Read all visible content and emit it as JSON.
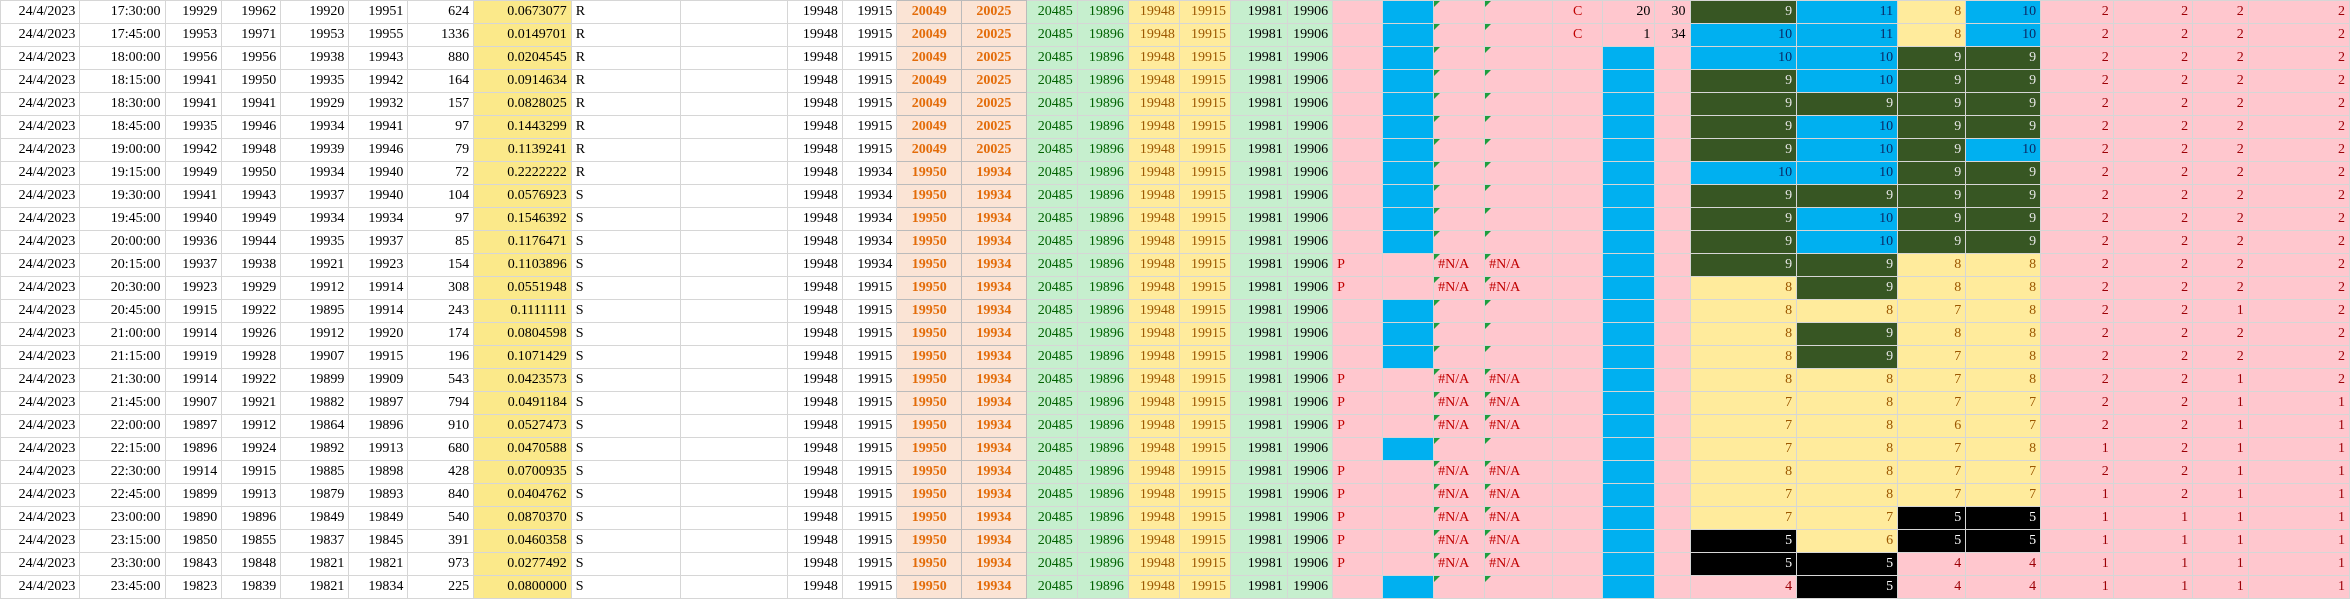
{
  "columns": 34,
  "rows": [
    {
      "date": "24/4/2023",
      "time": "17:30:00",
      "o": "19929",
      "h": "19962",
      "lo": "19920",
      "c": "19951",
      "vol": "624",
      "ratio": "0.0673077",
      "flag": "R",
      "v1": "19948",
      "v2": "19915",
      "or1": "20049",
      "or2": "20025",
      "g1": "20485",
      "g2": "19896",
      "y1": "19948",
      "y2": "19915",
      "g3": "19981",
      "g4": "19906",
      "p1": "",
      "na1": "",
      "na2": "",
      "cl": "C",
      "n1": "20",
      "n2": "30",
      "a": "9",
      "b": "11",
      "c2": "8",
      "d": "10",
      "e1": "2",
      "e2": "2",
      "e3": "2",
      "e4": "2",
      "s": [
        "dg",
        "bl",
        "yy",
        "bl"
      ]
    },
    {
      "date": "24/4/2023",
      "time": "17:45:00",
      "o": "19953",
      "h": "19971",
      "lo": "19953",
      "c": "19955",
      "vol": "1336",
      "ratio": "0.0149701",
      "flag": "R",
      "v1": "19948",
      "v2": "19915",
      "or1": "20049",
      "or2": "20025",
      "g1": "20485",
      "g2": "19896",
      "y1": "19948",
      "y2": "19915",
      "g3": "19981",
      "g4": "19906",
      "p1": "",
      "na1": "",
      "na2": "",
      "cl": "C",
      "n1": "1",
      "n2": "34",
      "a": "10",
      "b": "11",
      "c2": "8",
      "d": "10",
      "e1": "2",
      "e2": "2",
      "e3": "2",
      "e4": "2",
      "s": [
        "bl",
        "bl",
        "yy",
        "bl"
      ]
    },
    {
      "date": "24/4/2023",
      "time": "18:00:00",
      "o": "19956",
      "h": "19956",
      "lo": "19938",
      "c": "19943",
      "vol": "880",
      "ratio": "0.0204545",
      "flag": "R",
      "v1": "19948",
      "v2": "19915",
      "or1": "20049",
      "or2": "20025",
      "g1": "20485",
      "g2": "19896",
      "y1": "19948",
      "y2": "19915",
      "g3": "19981",
      "g4": "19906",
      "p1": "",
      "na1": "",
      "na2": "",
      "cl": "",
      "n1": "",
      "n2": "",
      "a": "10",
      "b": "10",
      "c2": "9",
      "d": "9",
      "e1": "2",
      "e2": "2",
      "e3": "2",
      "e4": "2",
      "s": [
        "bl",
        "bl",
        "dg",
        "dg"
      ]
    },
    {
      "date": "24/4/2023",
      "time": "18:15:00",
      "o": "19941",
      "h": "19950",
      "lo": "19935",
      "c": "19942",
      "vol": "164",
      "ratio": "0.0914634",
      "flag": "R",
      "v1": "19948",
      "v2": "19915",
      "or1": "20049",
      "or2": "20025",
      "g1": "20485",
      "g2": "19896",
      "y1": "19948",
      "y2": "19915",
      "g3": "19981",
      "g4": "19906",
      "p1": "",
      "na1": "",
      "na2": "",
      "cl": "",
      "n1": "",
      "n2": "",
      "a": "9",
      "b": "10",
      "c2": "9",
      "d": "9",
      "e1": "2",
      "e2": "2",
      "e3": "2",
      "e4": "2",
      "s": [
        "dg",
        "bl",
        "dg",
        "dg"
      ]
    },
    {
      "date": "24/4/2023",
      "time": "18:30:00",
      "o": "19941",
      "h": "19941",
      "lo": "19929",
      "c": "19932",
      "vol": "157",
      "ratio": "0.0828025",
      "flag": "R",
      "v1": "19948",
      "v2": "19915",
      "or1": "20049",
      "or2": "20025",
      "g1": "20485",
      "g2": "19896",
      "y1": "19948",
      "y2": "19915",
      "g3": "19981",
      "g4": "19906",
      "p1": "",
      "na1": "",
      "na2": "",
      "cl": "",
      "n1": "",
      "n2": "",
      "a": "9",
      "b": "9",
      "c2": "9",
      "d": "9",
      "e1": "2",
      "e2": "2",
      "e3": "2",
      "e4": "2",
      "s": [
        "dg",
        "dg",
        "dg",
        "dg"
      ]
    },
    {
      "date": "24/4/2023",
      "time": "18:45:00",
      "o": "19935",
      "h": "19946",
      "lo": "19934",
      "c": "19941",
      "vol": "97",
      "ratio": "0.1443299",
      "flag": "R",
      "v1": "19948",
      "v2": "19915",
      "or1": "20049",
      "or2": "20025",
      "g1": "20485",
      "g2": "19896",
      "y1": "19948",
      "y2": "19915",
      "g3": "19981",
      "g4": "19906",
      "p1": "",
      "na1": "",
      "na2": "",
      "cl": "",
      "n1": "",
      "n2": "",
      "a": "9",
      "b": "10",
      "c2": "9",
      "d": "9",
      "e1": "2",
      "e2": "2",
      "e3": "2",
      "e4": "2",
      "s": [
        "dg",
        "bl",
        "dg",
        "dg"
      ]
    },
    {
      "date": "24/4/2023",
      "time": "19:00:00",
      "o": "19942",
      "h": "19948",
      "lo": "19939",
      "c": "19946",
      "vol": "79",
      "ratio": "0.1139241",
      "flag": "R",
      "v1": "19948",
      "v2": "19915",
      "or1": "20049",
      "or2": "20025",
      "g1": "20485",
      "g2": "19896",
      "y1": "19948",
      "y2": "19915",
      "g3": "19981",
      "g4": "19906",
      "p1": "",
      "na1": "",
      "na2": "",
      "cl": "",
      "n1": "",
      "n2": "",
      "a": "9",
      "b": "10",
      "c2": "9",
      "d": "10",
      "e1": "2",
      "e2": "2",
      "e3": "2",
      "e4": "2",
      "s": [
        "dg",
        "bl",
        "dg",
        "bl"
      ]
    },
    {
      "date": "24/4/2023",
      "time": "19:15:00",
      "o": "19949",
      "h": "19950",
      "lo": "19934",
      "c": "19940",
      "vol": "72",
      "ratio": "0.2222222",
      "flag": "R",
      "v1": "19948",
      "v2": "19934",
      "or1": "19950",
      "or2": "19934",
      "g1": "20485",
      "g2": "19896",
      "y1": "19948",
      "y2": "19915",
      "g3": "19981",
      "g4": "19906",
      "p1": "",
      "na1": "",
      "na2": "",
      "cl": "",
      "n1": "",
      "n2": "",
      "a": "10",
      "b": "10",
      "c2": "9",
      "d": "9",
      "e1": "2",
      "e2": "2",
      "e3": "2",
      "e4": "2",
      "s": [
        "bl",
        "bl",
        "dg",
        "dg"
      ]
    },
    {
      "date": "24/4/2023",
      "time": "19:30:00",
      "o": "19941",
      "h": "19943",
      "lo": "19937",
      "c": "19940",
      "vol": "104",
      "ratio": "0.0576923",
      "flag": "S",
      "v1": "19948",
      "v2": "19934",
      "or1": "19950",
      "or2": "19934",
      "g1": "20485",
      "g2": "19896",
      "y1": "19948",
      "y2": "19915",
      "g3": "19981",
      "g4": "19906",
      "p1": "",
      "na1": "",
      "na2": "",
      "cl": "",
      "n1": "",
      "n2": "",
      "a": "9",
      "b": "9",
      "c2": "9",
      "d": "9",
      "e1": "2",
      "e2": "2",
      "e3": "2",
      "e4": "2",
      "s": [
        "dg",
        "dg",
        "dg",
        "dg"
      ]
    },
    {
      "date": "24/4/2023",
      "time": "19:45:00",
      "o": "19940",
      "h": "19949",
      "lo": "19934",
      "c": "19934",
      "vol": "97",
      "ratio": "0.1546392",
      "flag": "S",
      "v1": "19948",
      "v2": "19934",
      "or1": "19950",
      "or2": "19934",
      "g1": "20485",
      "g2": "19896",
      "y1": "19948",
      "y2": "19915",
      "g3": "19981",
      "g4": "19906",
      "p1": "",
      "na1": "",
      "na2": "",
      "cl": "",
      "n1": "",
      "n2": "",
      "a": "9",
      "b": "10",
      "c2": "9",
      "d": "9",
      "e1": "2",
      "e2": "2",
      "e3": "2",
      "e4": "2",
      "s": [
        "dg",
        "bl",
        "dg",
        "dg"
      ]
    },
    {
      "date": "24/4/2023",
      "time": "20:00:00",
      "o": "19936",
      "h": "19944",
      "lo": "19935",
      "c": "19937",
      "vol": "85",
      "ratio": "0.1176471",
      "flag": "S",
      "v1": "19948",
      "v2": "19934",
      "or1": "19950",
      "or2": "19934",
      "g1": "20485",
      "g2": "19896",
      "y1": "19948",
      "y2": "19915",
      "g3": "19981",
      "g4": "19906",
      "p1": "",
      "na1": "",
      "na2": "",
      "cl": "",
      "n1": "",
      "n2": "",
      "a": "9",
      "b": "10",
      "c2": "9",
      "d": "9",
      "e1": "2",
      "e2": "2",
      "e3": "2",
      "e4": "2",
      "s": [
        "dg",
        "bl",
        "dg",
        "dg"
      ]
    },
    {
      "date": "24/4/2023",
      "time": "20:15:00",
      "o": "19937",
      "h": "19938",
      "lo": "19921",
      "c": "19923",
      "vol": "154",
      "ratio": "0.1103896",
      "flag": "S",
      "v1": "19948",
      "v2": "19934",
      "or1": "19950",
      "or2": "19934",
      "g1": "20485",
      "g2": "19896",
      "y1": "19948",
      "y2": "19915",
      "g3": "19981",
      "g4": "19906",
      "p1": "P",
      "na1": "#N/A",
      "na2": "#N/A",
      "cl": "",
      "n1": "",
      "n2": "",
      "a": "9",
      "b": "9",
      "c2": "8",
      "d": "8",
      "e1": "2",
      "e2": "2",
      "e3": "2",
      "e4": "2",
      "s": [
        "dg",
        "dg",
        "yy",
        "yy"
      ]
    },
    {
      "date": "24/4/2023",
      "time": "20:30:00",
      "o": "19923",
      "h": "19929",
      "lo": "19912",
      "c": "19914",
      "vol": "308",
      "ratio": "0.0551948",
      "flag": "S",
      "v1": "19948",
      "v2": "19915",
      "or1": "19950",
      "or2": "19934",
      "g1": "20485",
      "g2": "19896",
      "y1": "19948",
      "y2": "19915",
      "g3": "19981",
      "g4": "19906",
      "p1": "P",
      "na1": "#N/A",
      "na2": "#N/A",
      "cl": "",
      "n1": "",
      "n2": "",
      "a": "8",
      "b": "9",
      "c2": "8",
      "d": "8",
      "e1": "2",
      "e2": "2",
      "e3": "2",
      "e4": "2",
      "s": [
        "yy",
        "dg",
        "yy",
        "yy"
      ]
    },
    {
      "date": "24/4/2023",
      "time": "20:45:00",
      "o": "19915",
      "h": "19922",
      "lo": "19895",
      "c": "19914",
      "vol": "243",
      "ratio": "0.1111111",
      "flag": "S",
      "v1": "19948",
      "v2": "19915",
      "or1": "19950",
      "or2": "19934",
      "g1": "20485",
      "g2": "19896",
      "y1": "19948",
      "y2": "19915",
      "g3": "19981",
      "g4": "19906",
      "p1": "",
      "na1": "",
      "na2": "",
      "cl": "",
      "n1": "",
      "n2": "",
      "a": "8",
      "b": "8",
      "c2": "7",
      "d": "8",
      "e1": "2",
      "e2": "2",
      "e3": "1",
      "e4": "2",
      "s": [
        "yy",
        "yy",
        "yy",
        "yy"
      ]
    },
    {
      "date": "24/4/2023",
      "time": "21:00:00",
      "o": "19914",
      "h": "19926",
      "lo": "19912",
      "c": "19920",
      "vol": "174",
      "ratio": "0.0804598",
      "flag": "S",
      "v1": "19948",
      "v2": "19915",
      "or1": "19950",
      "or2": "19934",
      "g1": "20485",
      "g2": "19896",
      "y1": "19948",
      "y2": "19915",
      "g3": "19981",
      "g4": "19906",
      "p1": "",
      "na1": "",
      "na2": "",
      "cl": "",
      "n1": "",
      "n2": "",
      "a": "8",
      "b": "9",
      "c2": "8",
      "d": "8",
      "e1": "2",
      "e2": "2",
      "e3": "2",
      "e4": "2",
      "s": [
        "yy",
        "dg",
        "yy",
        "yy"
      ]
    },
    {
      "date": "24/4/2023",
      "time": "21:15:00",
      "o": "19919",
      "h": "19928",
      "lo": "19907",
      "c": "19915",
      "vol": "196",
      "ratio": "0.1071429",
      "flag": "S",
      "v1": "19948",
      "v2": "19915",
      "or1": "19950",
      "or2": "19934",
      "g1": "20485",
      "g2": "19896",
      "y1": "19948",
      "y2": "19915",
      "g3": "19981",
      "g4": "19906",
      "p1": "",
      "na1": "",
      "na2": "",
      "cl": "",
      "n1": "",
      "n2": "",
      "a": "8",
      "b": "9",
      "c2": "7",
      "d": "8",
      "e1": "2",
      "e2": "2",
      "e3": "2",
      "e4": "2",
      "s": [
        "yy",
        "dg",
        "yy",
        "yy"
      ]
    },
    {
      "date": "24/4/2023",
      "time": "21:30:00",
      "o": "19914",
      "h": "19922",
      "lo": "19899",
      "c": "19909",
      "vol": "543",
      "ratio": "0.0423573",
      "flag": "S",
      "v1": "19948",
      "v2": "19915",
      "or1": "19950",
      "or2": "19934",
      "g1": "20485",
      "g2": "19896",
      "y1": "19948",
      "y2": "19915",
      "g3": "19981",
      "g4": "19906",
      "p1": "P",
      "na1": "#N/A",
      "na2": "#N/A",
      "cl": "",
      "n1": "",
      "n2": "",
      "a": "8",
      "b": "8",
      "c2": "7",
      "d": "8",
      "e1": "2",
      "e2": "2",
      "e3": "1",
      "e4": "2",
      "s": [
        "yy",
        "yy",
        "yy",
        "yy"
      ]
    },
    {
      "date": "24/4/2023",
      "time": "21:45:00",
      "o": "19907",
      "h": "19921",
      "lo": "19882",
      "c": "19897",
      "vol": "794",
      "ratio": "0.0491184",
      "flag": "S",
      "v1": "19948",
      "v2": "19915",
      "or1": "19950",
      "or2": "19934",
      "g1": "20485",
      "g2": "19896",
      "y1": "19948",
      "y2": "19915",
      "g3": "19981",
      "g4": "19906",
      "p1": "P",
      "na1": "#N/A",
      "na2": "#N/A",
      "cl": "",
      "n1": "",
      "n2": "",
      "a": "7",
      "b": "8",
      "c2": "7",
      "d": "7",
      "e1": "2",
      "e2": "2",
      "e3": "1",
      "e4": "1",
      "s": [
        "yy",
        "yy",
        "yy",
        "yy"
      ]
    },
    {
      "date": "24/4/2023",
      "time": "22:00:00",
      "o": "19897",
      "h": "19912",
      "lo": "19864",
      "c": "19896",
      "vol": "910",
      "ratio": "0.0527473",
      "flag": "S",
      "v1": "19948",
      "v2": "19915",
      "or1": "19950",
      "or2": "19934",
      "g1": "20485",
      "g2": "19896",
      "y1": "19948",
      "y2": "19915",
      "g3": "19981",
      "g4": "19906",
      "p1": "P",
      "na1": "#N/A",
      "na2": "#N/A",
      "cl": "",
      "n1": "",
      "n2": "",
      "a": "7",
      "b": "8",
      "c2": "6",
      "d": "7",
      "e1": "2",
      "e2": "2",
      "e3": "1",
      "e4": "1",
      "s": [
        "yy",
        "yy",
        "yy",
        "yy"
      ]
    },
    {
      "date": "24/4/2023",
      "time": "22:15:00",
      "o": "19896",
      "h": "19924",
      "lo": "19892",
      "c": "19913",
      "vol": "680",
      "ratio": "0.0470588",
      "flag": "S",
      "v1": "19948",
      "v2": "19915",
      "or1": "19950",
      "or2": "19934",
      "g1": "20485",
      "g2": "19896",
      "y1": "19948",
      "y2": "19915",
      "g3": "19981",
      "g4": "19906",
      "p1": "",
      "na1": "",
      "na2": "",
      "cl": "",
      "n1": "",
      "n2": "",
      "a": "7",
      "b": "8",
      "c2": "7",
      "d": "8",
      "e1": "1",
      "e2": "2",
      "e3": "1",
      "e4": "1",
      "s": [
        "yy",
        "yy",
        "yy",
        "yy"
      ]
    },
    {
      "date": "24/4/2023",
      "time": "22:30:00",
      "o": "19914",
      "h": "19915",
      "lo": "19885",
      "c": "19898",
      "vol": "428",
      "ratio": "0.0700935",
      "flag": "S",
      "v1": "19948",
      "v2": "19915",
      "or1": "19950",
      "or2": "19934",
      "g1": "20485",
      "g2": "19896",
      "y1": "19948",
      "y2": "19915",
      "g3": "19981",
      "g4": "19906",
      "p1": "P",
      "na1": "#N/A",
      "na2": "#N/A",
      "cl": "",
      "n1": "",
      "n2": "",
      "a": "8",
      "b": "8",
      "c2": "7",
      "d": "7",
      "e1": "2",
      "e2": "2",
      "e3": "1",
      "e4": "1",
      "s": [
        "yy",
        "yy",
        "yy",
        "yy"
      ]
    },
    {
      "date": "24/4/2023",
      "time": "22:45:00",
      "o": "19899",
      "h": "19913",
      "lo": "19879",
      "c": "19893",
      "vol": "840",
      "ratio": "0.0404762",
      "flag": "S",
      "v1": "19948",
      "v2": "19915",
      "or1": "19950",
      "or2": "19934",
      "g1": "20485",
      "g2": "19896",
      "y1": "19948",
      "y2": "19915",
      "g3": "19981",
      "g4": "19906",
      "p1": "P",
      "na1": "#N/A",
      "na2": "#N/A",
      "cl": "",
      "n1": "",
      "n2": "",
      "a": "7",
      "b": "8",
      "c2": "7",
      "d": "7",
      "e1": "1",
      "e2": "2",
      "e3": "1",
      "e4": "1",
      "s": [
        "yy",
        "yy",
        "yy",
        "yy"
      ]
    },
    {
      "date": "24/4/2023",
      "time": "23:00:00",
      "o": "19890",
      "h": "19896",
      "lo": "19849",
      "c": "19849",
      "vol": "540",
      "ratio": "0.0870370",
      "flag": "S",
      "v1": "19948",
      "v2": "19915",
      "or1": "19950",
      "or2": "19934",
      "g1": "20485",
      "g2": "19896",
      "y1": "19948",
      "y2": "19915",
      "g3": "19981",
      "g4": "19906",
      "p1": "P",
      "na1": "#N/A",
      "na2": "#N/A",
      "cl": "",
      "n1": "",
      "n2": "",
      "a": "7",
      "b": "7",
      "c2": "5",
      "d": "5",
      "e1": "1",
      "e2": "1",
      "e3": "1",
      "e4": "1",
      "s": [
        "yy",
        "yy",
        "bk",
        "bk"
      ]
    },
    {
      "date": "24/4/2023",
      "time": "23:15:00",
      "o": "19850",
      "h": "19855",
      "lo": "19837",
      "c": "19845",
      "vol": "391",
      "ratio": "0.0460358",
      "flag": "S",
      "v1": "19948",
      "v2": "19915",
      "or1": "19950",
      "or2": "19934",
      "g1": "20485",
      "g2": "19896",
      "y1": "19948",
      "y2": "19915",
      "g3": "19981",
      "g4": "19906",
      "p1": "P",
      "na1": "#N/A",
      "na2": "#N/A",
      "cl": "",
      "n1": "",
      "n2": "",
      "a": "5",
      "b": "6",
      "c2": "5",
      "d": "5",
      "e1": "1",
      "e2": "1",
      "e3": "1",
      "e4": "1",
      "s": [
        "bk",
        "yy",
        "bk",
        "bk"
      ]
    },
    {
      "date": "24/4/2023",
      "time": "23:30:00",
      "o": "19843",
      "h": "19848",
      "lo": "19821",
      "c": "19821",
      "vol": "973",
      "ratio": "0.0277492",
      "flag": "S",
      "v1": "19948",
      "v2": "19915",
      "or1": "19950",
      "or2": "19934",
      "g1": "20485",
      "g2": "19896",
      "y1": "19948",
      "y2": "19915",
      "g3": "19981",
      "g4": "19906",
      "p1": "P",
      "na1": "#N/A",
      "na2": "#N/A",
      "cl": "",
      "n1": "",
      "n2": "",
      "a": "5",
      "b": "5",
      "c2": "4",
      "d": "4",
      "e1": "1",
      "e2": "1",
      "e3": "1",
      "e4": "1",
      "s": [
        "bk",
        "bk",
        "p",
        "p"
      ]
    },
    {
      "date": "24/4/2023",
      "time": "23:45:00",
      "o": "19823",
      "h": "19839",
      "lo": "19821",
      "c": "19834",
      "vol": "225",
      "ratio": "0.0800000",
      "flag": "S",
      "v1": "19948",
      "v2": "19915",
      "or1": "19950",
      "or2": "19934",
      "g1": "20485",
      "g2": "19896",
      "y1": "19948",
      "y2": "19915",
      "g3": "19981",
      "g4": "19906",
      "p1": "",
      "na1": "",
      "na2": "",
      "cl": "",
      "n1": "",
      "n2": "",
      "a": "4",
      "b": "5",
      "c2": "4",
      "d": "4",
      "e1": "1",
      "e2": "1",
      "e3": "1",
      "e4": "1",
      "s": [
        "p",
        "bk",
        "p",
        "p"
      ]
    }
  ],
  "colors": {
    "yellow": "#fbe98a",
    "orange_text": "#e36c09",
    "green_fill": "#c6efce",
    "pink_fill": "#ffc7ce",
    "blue_fill": "#00b0f0",
    "dark_green": "#375623",
    "black": "#000000"
  }
}
